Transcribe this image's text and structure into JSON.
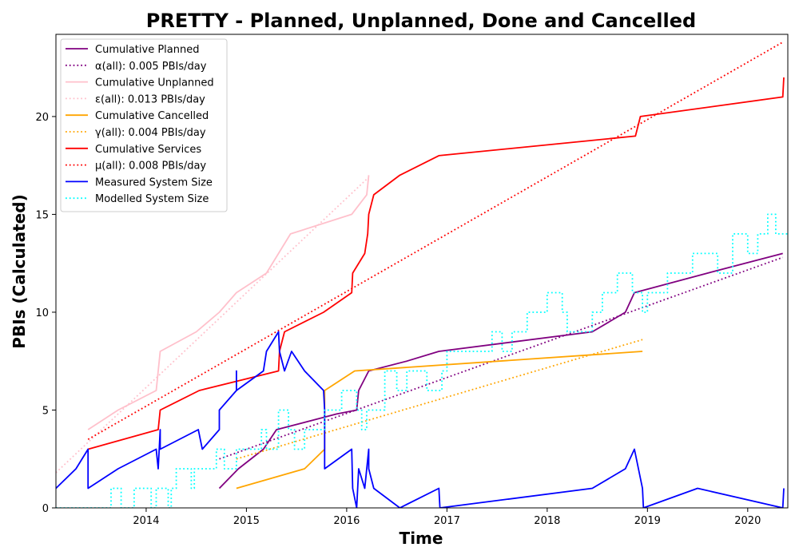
{
  "chart_data": {
    "type": "line",
    "title": "PRETTY - Planned, Unplanned, Done  and Cancelled",
    "xlabel": "Time",
    "ylabel": "PBIs (Calculated)",
    "xlim": [
      2013.1,
      2020.4
    ],
    "ylim": [
      0,
      24.2
    ],
    "xticks": [
      2014,
      2015,
      2016,
      2017,
      2018,
      2019,
      2020
    ],
    "yticks": [
      0,
      5,
      10,
      15,
      20
    ],
    "grid": false,
    "legend_position": "top-left",
    "series": [
      {
        "name": "Cumulative Planned",
        "color": "#800080",
        "style": "solid",
        "points": [
          [
            2014.73,
            1
          ],
          [
            2014.92,
            2
          ],
          [
            2015.17,
            3
          ],
          [
            2015.3,
            4
          ],
          [
            2015.9,
            4.8
          ],
          [
            2016.1,
            5
          ],
          [
            2016.12,
            6
          ],
          [
            2016.22,
            7
          ],
          [
            2016.6,
            7.5
          ],
          [
            2016.92,
            8
          ],
          [
            2018.45,
            9
          ],
          [
            2018.78,
            10
          ],
          [
            2018.87,
            11
          ],
          [
            2019.6,
            12
          ],
          [
            2020.35,
            13
          ]
        ]
      },
      {
        "name": "α(all): 0.005 PBIs/day",
        "color": "#800080",
        "style": "dotted",
        "points": [
          [
            2014.73,
            2.5
          ],
          [
            2020.35,
            12.8
          ]
        ]
      },
      {
        "name": "Cumulative Unplanned",
        "color": "#ffc0cb",
        "style": "solid",
        "points": [
          [
            2013.42,
            4
          ],
          [
            2013.72,
            5
          ],
          [
            2014.1,
            6
          ],
          [
            2014.14,
            8
          ],
          [
            2014.5,
            9
          ],
          [
            2014.73,
            10
          ],
          [
            2014.9,
            11
          ],
          [
            2015.2,
            12
          ],
          [
            2015.44,
            14
          ],
          [
            2016.05,
            15
          ],
          [
            2016.2,
            16
          ],
          [
            2016.22,
            17
          ]
        ]
      },
      {
        "name": "ε(all): 0.013 PBIs/day",
        "color": "#ffc0cb",
        "style": "dotted",
        "points": [
          [
            2013.1,
            1.8
          ],
          [
            2016.2,
            16.8
          ]
        ]
      },
      {
        "name": "Cumulative Cancelled",
        "color": "#ffa500",
        "style": "solid",
        "points": [
          [
            2014.9,
            1
          ],
          [
            2015.58,
            2
          ],
          [
            2015.78,
            3
          ],
          [
            2015.78,
            6
          ],
          [
            2016.08,
            7
          ],
          [
            2018.95,
            8
          ]
        ]
      },
      {
        "name": "γ(all): 0.004 PBIs/day",
        "color": "#ffa500",
        "style": "dotted",
        "points": [
          [
            2014.9,
            2.5
          ],
          [
            2018.95,
            8.6
          ]
        ]
      },
      {
        "name": "Cumulative Services",
        "color": "#ff0000",
        "style": "solid",
        "points": [
          [
            2013.42,
            3
          ],
          [
            2014.12,
            4
          ],
          [
            2014.14,
            5
          ],
          [
            2014.53,
            6
          ],
          [
            2015.32,
            7
          ],
          [
            2015.33,
            8
          ],
          [
            2015.38,
            9
          ],
          [
            2015.77,
            10
          ],
          [
            2016.05,
            11
          ],
          [
            2016.06,
            12
          ],
          [
            2016.18,
            13
          ],
          [
            2016.21,
            14
          ],
          [
            2016.22,
            15
          ],
          [
            2016.27,
            16
          ],
          [
            2016.53,
            17
          ],
          [
            2016.92,
            18
          ],
          [
            2018.88,
            19
          ],
          [
            2018.93,
            20
          ],
          [
            2020.35,
            21
          ],
          [
            2020.36,
            22
          ]
        ]
      },
      {
        "name": "μ(all): 0.008 PBIs/day",
        "color": "#ff0000",
        "style": "dotted",
        "points": [
          [
            2013.42,
            3.5
          ],
          [
            2020.35,
            23.8
          ]
        ]
      },
      {
        "name": "Measured System Size",
        "color": "#0000ff",
        "style": "solid",
        "points": [
          [
            2013.1,
            1
          ],
          [
            2013.3,
            2
          ],
          [
            2013.42,
            3
          ],
          [
            2013.42,
            1
          ],
          [
            2013.72,
            2
          ],
          [
            2014.1,
            3
          ],
          [
            2014.12,
            2
          ],
          [
            2014.14,
            4
          ],
          [
            2014.14,
            3
          ],
          [
            2014.52,
            4
          ],
          [
            2014.56,
            3
          ],
          [
            2014.73,
            4
          ],
          [
            2014.73,
            5
          ],
          [
            2014.9,
            6
          ],
          [
            2014.9,
            7
          ],
          [
            2014.9,
            6
          ],
          [
            2015.17,
            7
          ],
          [
            2015.2,
            8
          ],
          [
            2015.32,
            9
          ],
          [
            2015.33,
            8
          ],
          [
            2015.38,
            7
          ],
          [
            2015.45,
            8
          ],
          [
            2015.58,
            7
          ],
          [
            2015.77,
            6
          ],
          [
            2015.78,
            5
          ],
          [
            2015.78,
            2
          ],
          [
            2016.05,
            3
          ],
          [
            2016.06,
            1
          ],
          [
            2016.1,
            0
          ],
          [
            2016.12,
            2
          ],
          [
            2016.18,
            1
          ],
          [
            2016.22,
            3
          ],
          [
            2016.22,
            2
          ],
          [
            2016.27,
            1
          ],
          [
            2016.53,
            0
          ],
          [
            2016.92,
            1
          ],
          [
            2016.93,
            0
          ],
          [
            2018.45,
            1
          ],
          [
            2018.78,
            2
          ],
          [
            2018.87,
            3
          ],
          [
            2018.95,
            1
          ],
          [
            2018.96,
            0
          ],
          [
            2019.5,
            1
          ],
          [
            2020.35,
            0
          ],
          [
            2020.36,
            1
          ]
        ]
      },
      {
        "name": "Modelled System Size",
        "color": "#00ffff",
        "style": "dotted",
        "steps": [
          [
            2013.1,
            0
          ],
          [
            2013.65,
            1
          ],
          [
            2013.75,
            0
          ],
          [
            2013.88,
            1
          ],
          [
            2014.05,
            0
          ],
          [
            2014.1,
            1
          ],
          [
            2014.22,
            0
          ],
          [
            2014.25,
            1
          ],
          [
            2014.3,
            2
          ],
          [
            2014.45,
            1
          ],
          [
            2014.48,
            2
          ],
          [
            2014.7,
            3
          ],
          [
            2014.78,
            2
          ],
          [
            2014.9,
            3
          ],
          [
            2015.15,
            4
          ],
          [
            2015.2,
            3
          ],
          [
            2015.32,
            5
          ],
          [
            2015.42,
            4
          ],
          [
            2015.48,
            3
          ],
          [
            2015.58,
            4
          ],
          [
            2015.78,
            5
          ],
          [
            2015.95,
            6
          ],
          [
            2016.1,
            5
          ],
          [
            2016.15,
            4
          ],
          [
            2016.2,
            5
          ],
          [
            2016.38,
            7
          ],
          [
            2016.5,
            6
          ],
          [
            2016.6,
            7
          ],
          [
            2016.8,
            6
          ],
          [
            2016.95,
            7
          ],
          [
            2017.0,
            8
          ],
          [
            2017.25,
            8
          ],
          [
            2017.45,
            9
          ],
          [
            2017.55,
            8
          ],
          [
            2017.65,
            9
          ],
          [
            2017.8,
            10
          ],
          [
            2018.0,
            11
          ],
          [
            2018.15,
            10
          ],
          [
            2018.2,
            9
          ],
          [
            2018.45,
            10
          ],
          [
            2018.55,
            11
          ],
          [
            2018.7,
            12
          ],
          [
            2018.85,
            11
          ],
          [
            2018.95,
            10
          ],
          [
            2019.0,
            11
          ],
          [
            2019.2,
            12
          ],
          [
            2019.35,
            12
          ],
          [
            2019.45,
            13
          ],
          [
            2019.7,
            12
          ],
          [
            2019.85,
            14
          ],
          [
            2020.0,
            13
          ],
          [
            2020.1,
            14
          ],
          [
            2020.2,
            15
          ],
          [
            2020.28,
            14
          ],
          [
            2020.4,
            14
          ]
        ]
      }
    ]
  }
}
